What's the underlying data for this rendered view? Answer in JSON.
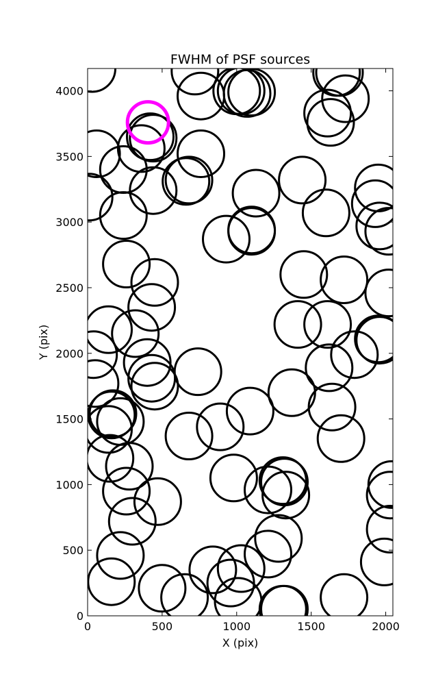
{
  "chart_data": {
    "type": "scatter",
    "title": "FWHM of PSF sources",
    "xlabel": "X (pix)",
    "ylabel": "Y (pix)",
    "xlim": [
      0,
      2048
    ],
    "ylim": [
      0,
      4170
    ],
    "xticks": [
      0,
      500,
      1000,
      1500,
      2000
    ],
    "yticks": [
      0,
      500,
      1000,
      1500,
      2000,
      2500,
      3000,
      3500,
      4000
    ],
    "grid": false,
    "marker": "open-circle",
    "colors": {
      "sources": "#000000",
      "highlight": "#ff00ff"
    },
    "highlight": {
      "x": 405,
      "y": 3760
    },
    "series": [
      {
        "values": [
          [
            30,
            4170
          ],
          [
            720,
            4150
          ],
          [
            1670,
            4140
          ],
          [
            1690,
            4140
          ],
          [
            1000,
            4000
          ],
          [
            1030,
            4000
          ],
          [
            1070,
            3980
          ],
          [
            1100,
            3990
          ],
          [
            760,
            3960
          ],
          [
            1730,
            3940
          ],
          [
            1610,
            3830
          ],
          [
            1630,
            3760
          ],
          [
            440,
            3640
          ],
          [
            420,
            3650
          ],
          [
            360,
            3560
          ],
          [
            60,
            3520
          ],
          [
            760,
            3520
          ],
          [
            240,
            3400
          ],
          [
            680,
            3320
          ],
          [
            660,
            3310
          ],
          [
            1440,
            3320
          ],
          [
            440,
            3240
          ],
          [
            1130,
            3220
          ],
          [
            1950,
            3260
          ],
          [
            10,
            3190
          ],
          [
            1930,
            3140
          ],
          [
            240,
            3050
          ],
          [
            1600,
            3070
          ],
          [
            1960,
            2970
          ],
          [
            2020,
            2930
          ],
          [
            930,
            2870
          ],
          [
            1100,
            2940
          ],
          [
            1100,
            2930
          ],
          [
            260,
            2680
          ],
          [
            1450,
            2600
          ],
          [
            1720,
            2560
          ],
          [
            450,
            2540
          ],
          [
            2020,
            2460
          ],
          [
            430,
            2350
          ],
          [
            1410,
            2220
          ],
          [
            1610,
            2220
          ],
          [
            140,
            2180
          ],
          [
            320,
            2150
          ],
          [
            1950,
            2110
          ],
          [
            1960,
            2100
          ],
          [
            40,
            1990
          ],
          [
            1790,
            1990
          ],
          [
            400,
            1930
          ],
          [
            1620,
            1890
          ],
          [
            740,
            1860
          ],
          [
            430,
            1810
          ],
          [
            50,
            1770
          ],
          [
            450,
            1750
          ],
          [
            1370,
            1700
          ],
          [
            170,
            1540
          ],
          [
            160,
            1530
          ],
          [
            1640,
            1590
          ],
          [
            1090,
            1560
          ],
          [
            220,
            1480
          ],
          [
            140,
            1420
          ],
          [
            890,
            1440
          ],
          [
            680,
            1370
          ],
          [
            1700,
            1350
          ],
          [
            150,
            1200
          ],
          [
            280,
            1140
          ],
          [
            980,
            1050
          ],
          [
            1310,
            1030
          ],
          [
            1320,
            1020
          ],
          [
            2040,
            1000
          ],
          [
            2030,
            920
          ],
          [
            260,
            950
          ],
          [
            1210,
            960
          ],
          [
            1330,
            920
          ],
          [
            470,
            870
          ],
          [
            300,
            720
          ],
          [
            2030,
            660
          ],
          [
            1280,
            590
          ],
          [
            220,
            460
          ],
          [
            1210,
            470
          ],
          [
            1990,
            410
          ],
          [
            1030,
            360
          ],
          [
            840,
            350
          ],
          [
            960,
            250
          ],
          [
            160,
            260
          ],
          [
            500,
            210
          ],
          [
            650,
            140
          ],
          [
            1720,
            140
          ],
          [
            1010,
            110
          ],
          [
            1320,
            50
          ],
          [
            1310,
            50
          ]
        ]
      }
    ]
  }
}
